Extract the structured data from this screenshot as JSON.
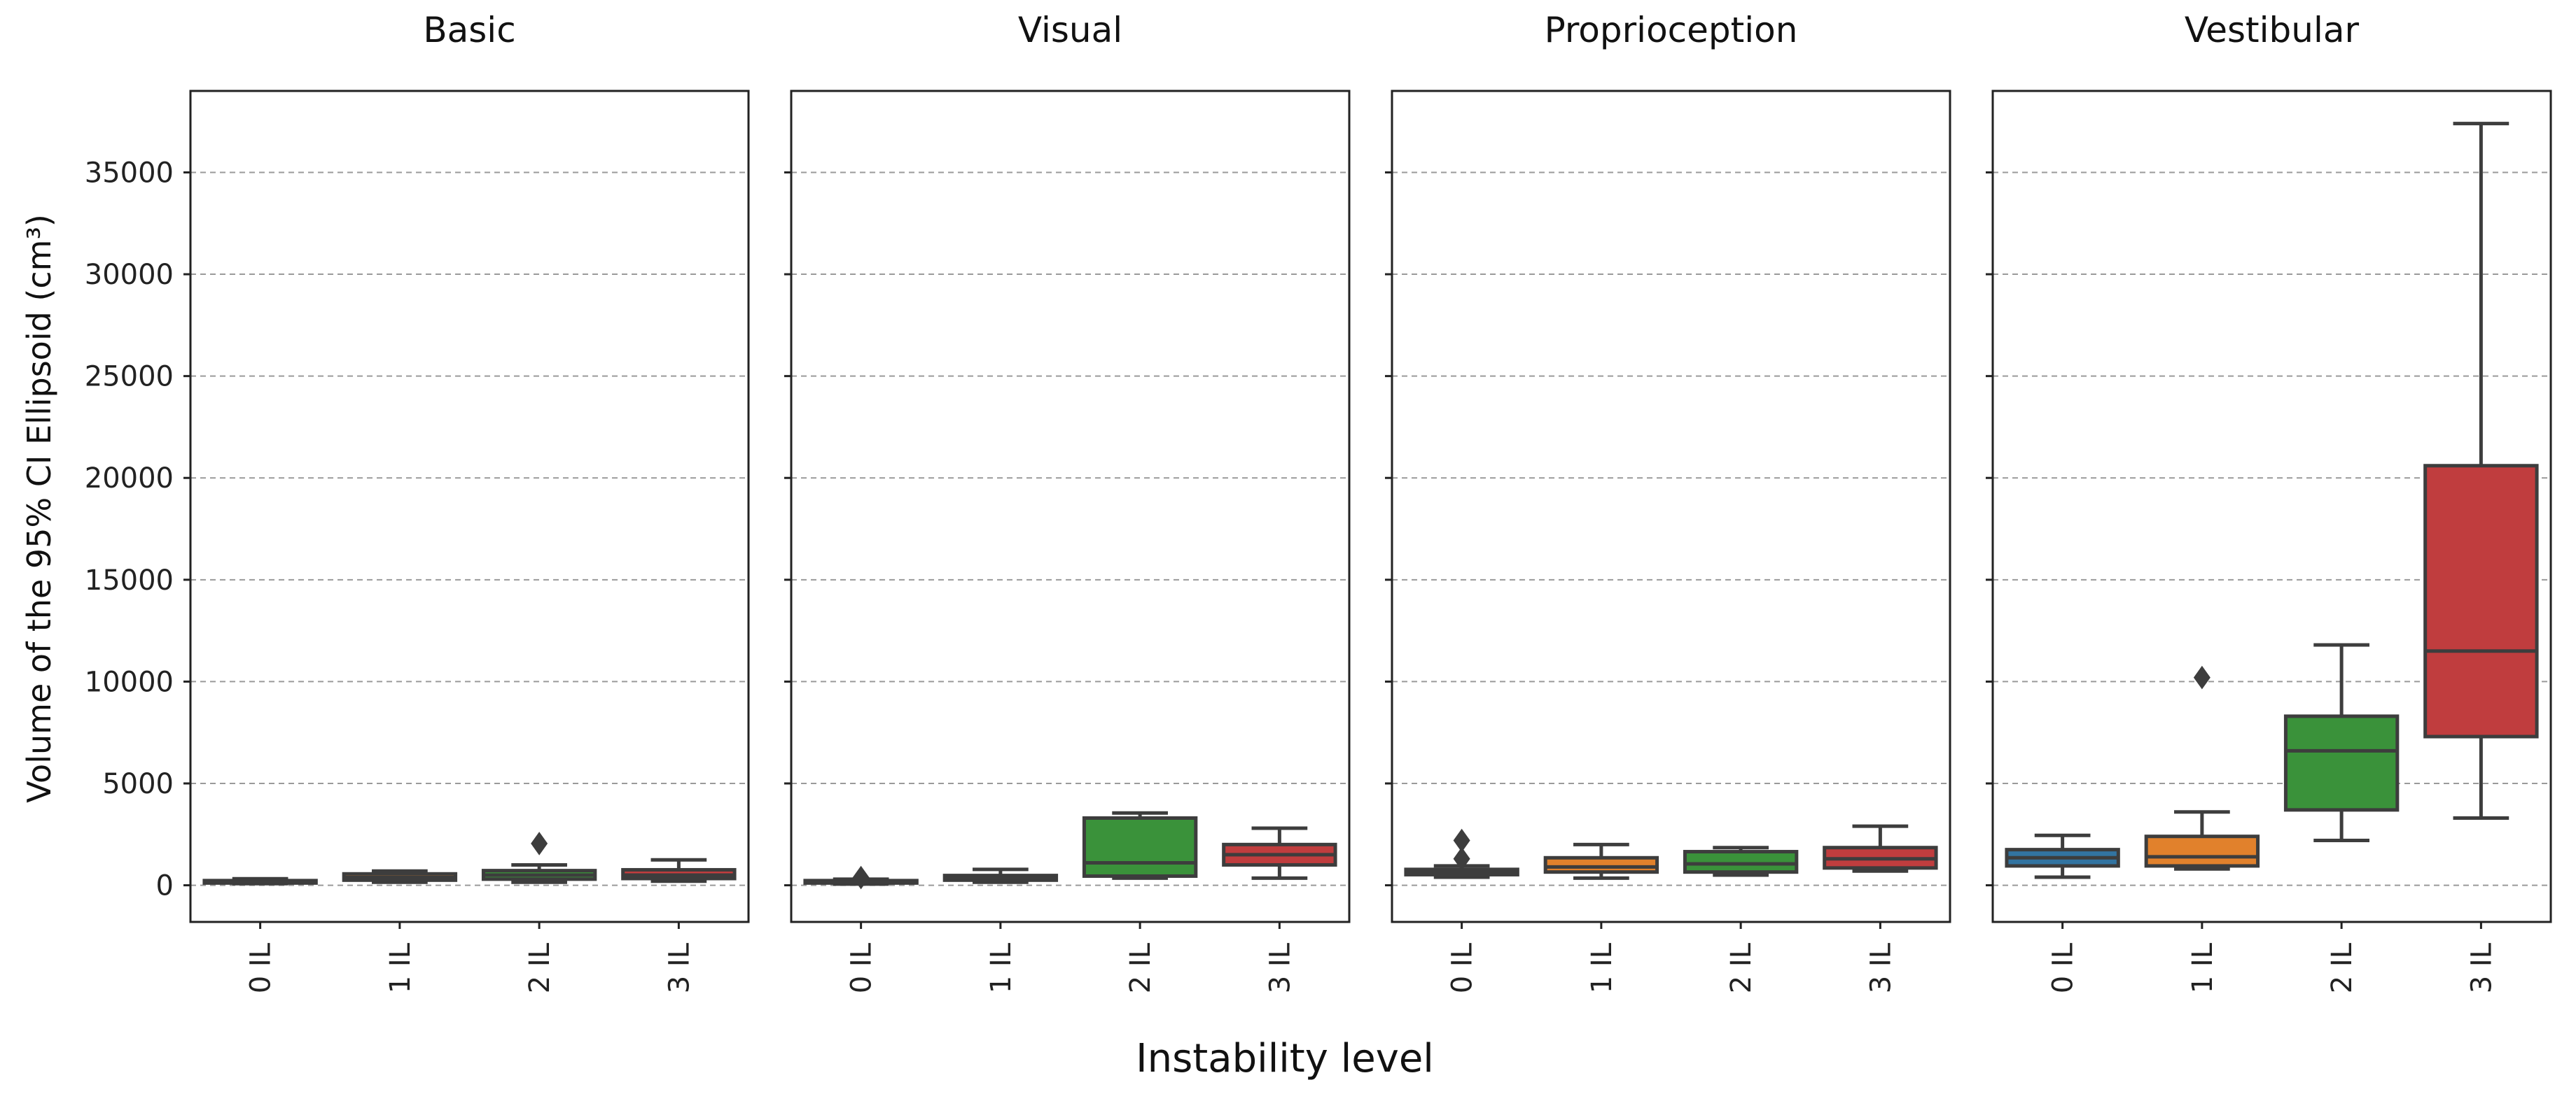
{
  "chart_data": {
    "type": "box",
    "ylabel": "Volume of the 95% CI Ellipsoid (cm³)",
    "xlabel": "Instability level",
    "ylim": [
      -1800,
      39000
    ],
    "yticks": [
      0,
      5000,
      10000,
      15000,
      20000,
      25000,
      30000,
      35000
    ],
    "grid": true,
    "categories": [
      "0 IL",
      "1 IL",
      "2 IL",
      "3 IL"
    ],
    "category_colors": [
      "#3274a1",
      "#e1812c",
      "#3a923a",
      "#c03d3e"
    ],
    "panels": [
      {
        "title": "Basic",
        "boxes": [
          {
            "category": "0 IL",
            "whislo": 80,
            "q1": 110,
            "median": 170,
            "q3": 230,
            "whishi": 320,
            "fliers": []
          },
          {
            "category": "1 IL",
            "whislo": 150,
            "q1": 250,
            "median": 380,
            "q3": 560,
            "whishi": 700,
            "fliers": []
          },
          {
            "category": "2 IL",
            "whislo": 150,
            "q1": 300,
            "median": 500,
            "q3": 720,
            "whishi": 1000,
            "fliers": [
              2050
            ]
          },
          {
            "category": "3 IL",
            "whislo": 200,
            "q1": 330,
            "median": 500,
            "q3": 760,
            "whishi": 1250,
            "fliers": []
          }
        ]
      },
      {
        "title": "Visual",
        "boxes": [
          {
            "category": "0 IL",
            "whislo": 60,
            "q1": 110,
            "median": 160,
            "q3": 230,
            "whishi": 300,
            "fliers": [
              380
            ]
          },
          {
            "category": "1 IL",
            "whislo": 150,
            "q1": 250,
            "median": 360,
            "q3": 480,
            "whishi": 780,
            "fliers": []
          },
          {
            "category": "2 IL",
            "whislo": 350,
            "q1": 450,
            "median": 1100,
            "q3": 3300,
            "whishi": 3550,
            "fliers": []
          },
          {
            "category": "3 IL",
            "whislo": 350,
            "q1": 1000,
            "median": 1500,
            "q3": 2000,
            "whishi": 2800,
            "fliers": []
          }
        ]
      },
      {
        "title": "Proprioception",
        "boxes": [
          {
            "category": "0 IL",
            "whislo": 400,
            "q1": 520,
            "median": 620,
            "q3": 780,
            "whishi": 950,
            "fliers": [
              1300,
              2200
            ]
          },
          {
            "category": "1 IL",
            "whislo": 350,
            "q1": 650,
            "median": 900,
            "q3": 1350,
            "whishi": 2000,
            "fliers": []
          },
          {
            "category": "2 IL",
            "whislo": 500,
            "q1": 650,
            "median": 1050,
            "q3": 1650,
            "whishi": 1850,
            "fliers": []
          },
          {
            "category": "3 IL",
            "whislo": 700,
            "q1": 850,
            "median": 1300,
            "q3": 1850,
            "whishi": 2900,
            "fliers": []
          }
        ]
      },
      {
        "title": "Vestibular",
        "boxes": [
          {
            "category": "0 IL",
            "whislo": 400,
            "q1": 950,
            "median": 1350,
            "q3": 1750,
            "whishi": 2450,
            "fliers": []
          },
          {
            "category": "1 IL",
            "whislo": 800,
            "q1": 950,
            "median": 1400,
            "q3": 2400,
            "whishi": 3600,
            "fliers": [
              10200
            ]
          },
          {
            "category": "2 IL",
            "whislo": 2200,
            "q1": 3700,
            "median": 6600,
            "q3": 8300,
            "whishi": 11800,
            "fliers": []
          },
          {
            "category": "3 IL",
            "whislo": 3300,
            "q1": 7300,
            "median": 11500,
            "q3": 20600,
            "whishi": 37400,
            "fliers": []
          }
        ]
      }
    ]
  }
}
